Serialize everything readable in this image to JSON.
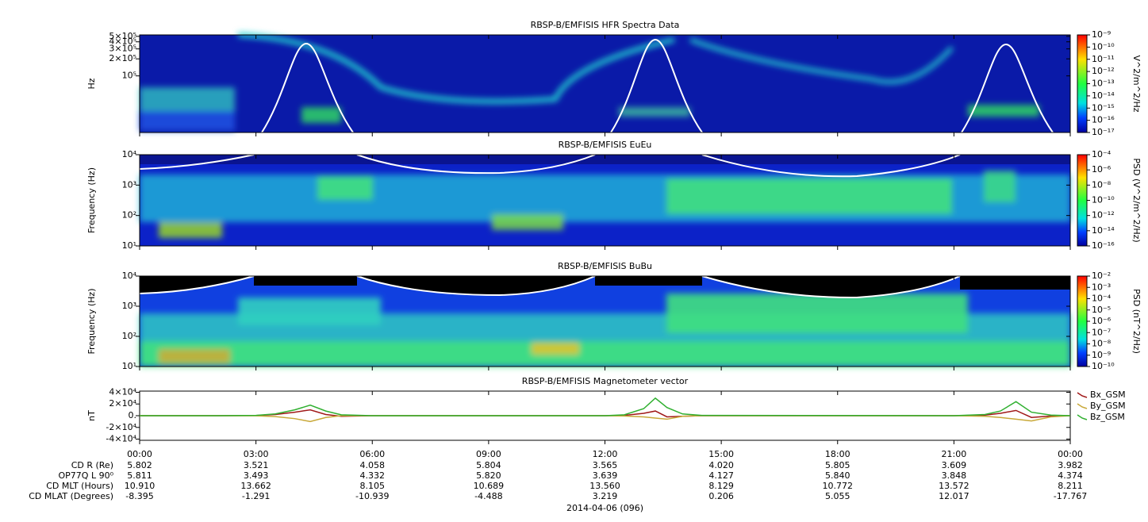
{
  "chart_data": [
    {
      "type": "spectrogram",
      "title": "RBSP-B/EMFISIS  HFR Spectra Data",
      "ylabel": "Hz",
      "log_scale": true,
      "ylim": [
        10000,
        530000
      ],
      "yticks": [
        {
          "value": 500000,
          "label": "5×10⁵"
        },
        {
          "value": 400000,
          "label": "4×10⁵"
        },
        {
          "value": 300000,
          "label": "3×10⁵"
        },
        {
          "value": 200000,
          "label": "2×10⁵"
        },
        {
          "value": 100000,
          "label": "10⁵"
        }
      ],
      "colorbar": {
        "label": "V^2/m^2/Hz",
        "lim": [
          1e-17,
          1e-09
        ],
        "ticks": [
          {
            "value": 1e-09,
            "label": "10⁻⁹"
          },
          {
            "value": 1e-10,
            "label": "10⁻¹⁰"
          },
          {
            "value": 1e-11,
            "label": "10⁻¹¹"
          },
          {
            "value": 1e-12,
            "label": "10⁻¹²"
          },
          {
            "value": 1e-13,
            "label": "10⁻¹³"
          },
          {
            "value": 1e-14,
            "label": "10⁻¹⁴"
          },
          {
            "value": 1e-15,
            "label": "10⁻¹⁵"
          },
          {
            "value": 1e-16,
            "label": "10⁻¹⁶"
          },
          {
            "value": 1e-17,
            "label": "10⁻¹⁷"
          }
        ]
      }
    },
    {
      "type": "spectrogram",
      "title": "RBSP-B/EMFISIS  EuEu",
      "ylabel": "Frequency (Hz)",
      "log_scale": true,
      "ylim": [
        10,
        10000
      ],
      "yticks": [
        {
          "value": 10000,
          "label": "10⁴"
        },
        {
          "value": 1000,
          "label": "10³"
        },
        {
          "value": 100,
          "label": "10²"
        },
        {
          "value": 10,
          "label": "10¹"
        }
      ],
      "colorbar": {
        "label": "PSD (V^2/m^2/Hz)",
        "lim": [
          1e-16,
          0.0001
        ],
        "ticks": [
          {
            "value": 0.0001,
            "label": "10⁻⁴"
          },
          {
            "value": 1e-06,
            "label": "10⁻⁶"
          },
          {
            "value": 1e-08,
            "label": "10⁻⁸"
          },
          {
            "value": 1e-10,
            "label": "10⁻¹⁰"
          },
          {
            "value": 1e-12,
            "label": "10⁻¹²"
          },
          {
            "value": 1e-14,
            "label": "10⁻¹⁴"
          },
          {
            "value": 1e-16,
            "label": "10⁻¹⁶"
          }
        ]
      }
    },
    {
      "type": "spectrogram",
      "title": "RBSP-B/EMFISIS  BuBu",
      "ylabel": "Frequency (Hz)",
      "log_scale": true,
      "ylim": [
        10,
        10000
      ],
      "yticks": [
        {
          "value": 10000,
          "label": "10⁴"
        },
        {
          "value": 1000,
          "label": "10³"
        },
        {
          "value": 100,
          "label": "10²"
        },
        {
          "value": 10,
          "label": "10¹"
        }
      ],
      "colorbar": {
        "label": "PSD (nT^2/Hz)",
        "lim": [
          1e-10,
          0.01
        ],
        "ticks": [
          {
            "value": 0.01,
            "label": "10⁻²"
          },
          {
            "value": 0.001,
            "label": "10⁻³"
          },
          {
            "value": 0.0001,
            "label": "10⁻⁴"
          },
          {
            "value": 1e-05,
            "label": "10⁻⁵"
          },
          {
            "value": 1e-06,
            "label": "10⁻⁶"
          },
          {
            "value": 1e-07,
            "label": "10⁻⁷"
          },
          {
            "value": 1e-08,
            "label": "10⁻⁸"
          },
          {
            "value": 1e-09,
            "label": "10⁻⁹"
          },
          {
            "value": 1e-10,
            "label": "10⁻¹⁰"
          }
        ]
      }
    },
    {
      "type": "line",
      "title": "RBSP-B/EMFISIS  Magnetometer vector",
      "ylabel": "nT",
      "ylim": [
        -42000,
        42000
      ],
      "yticks": [
        {
          "value": 40000,
          "label": "4×10⁴"
        },
        {
          "value": 20000,
          "label": "2×10⁴"
        },
        {
          "value": 0,
          "label": "0."
        },
        {
          "value": -20000,
          "label": "-2×10⁴"
        },
        {
          "value": -40000,
          "label": "-4×10⁴"
        }
      ],
      "xlim": [
        0,
        24
      ],
      "xticks": [
        {
          "value": 0,
          "label": "00:00"
        },
        {
          "value": 3,
          "label": "03:00"
        },
        {
          "value": 6,
          "label": "06:00"
        },
        {
          "value": 9,
          "label": "09:00"
        },
        {
          "value": 12,
          "label": "12:00"
        },
        {
          "value": 15,
          "label": "15:00"
        },
        {
          "value": 18,
          "label": "18:00"
        },
        {
          "value": 21,
          "label": "21:00"
        },
        {
          "value": 24,
          "label": "00:00"
        }
      ],
      "xlabel": "2014-04-06 (096)",
      "x": [
        0,
        2,
        3,
        3.5,
        4,
        4.4,
        4.8,
        5.2,
        6,
        12,
        12.5,
        13,
        13.3,
        13.6,
        14,
        14.5,
        21,
        21.8,
        22.2,
        22.6,
        23,
        23.5,
        24
      ],
      "series": [
        {
          "name": "Bx_GSM",
          "color": "#a01818",
          "values": [
            0,
            0,
            300,
            2000,
            6000,
            10000,
            2000,
            -1000,
            0,
            0,
            500,
            4000,
            8000,
            -2000,
            -1000,
            0,
            0,
            1000,
            4000,
            9000,
            -3000,
            -500,
            0
          ]
        },
        {
          "name": "By_GSM",
          "color": "#c8a838",
          "values": [
            0,
            0,
            -200,
            -1500,
            -5000,
            -10000,
            -3000,
            0,
            0,
            0,
            -500,
            -2000,
            -4000,
            -6000,
            -1000,
            0,
            0,
            -1000,
            -3000,
            -6000,
            -9000,
            -2000,
            0
          ]
        },
        {
          "name": "Bz_GSM",
          "color": "#30b030",
          "values": [
            0,
            0,
            500,
            3000,
            10000,
            18000,
            8000,
            1500,
            0,
            0,
            1500,
            12000,
            30000,
            14000,
            3000,
            500,
            0,
            2000,
            8000,
            24000,
            6000,
            1000,
            0
          ]
        }
      ],
      "ephemeris": [
        {
          "label": "CD R (Re)",
          "values": [
            "5.802",
            "3.521",
            "4.058",
            "5.804",
            "3.565",
            "4.020",
            "5.805",
            "3.609",
            "3.982"
          ]
        },
        {
          "label": "OP77Q L 90⁰",
          "values": [
            "5.811",
            "3.493",
            "4.332",
            "5.820",
            "3.639",
            "4.127",
            "5.840",
            "3.848",
            "4.374"
          ]
        },
        {
          "label": "CD MLT (Hours)",
          "values": [
            "10.910",
            "13.662",
            "8.105",
            "10.689",
            "13.560",
            "8.129",
            "10.772",
            "13.572",
            "8.211"
          ]
        },
        {
          "label": "CD MLAT (Degrees)",
          "values": [
            "-8.395",
            "-1.291",
            "-10.939",
            "-4.488",
            "3.219",
            "0.206",
            "5.055",
            "12.017",
            "-17.767"
          ]
        }
      ]
    }
  ]
}
